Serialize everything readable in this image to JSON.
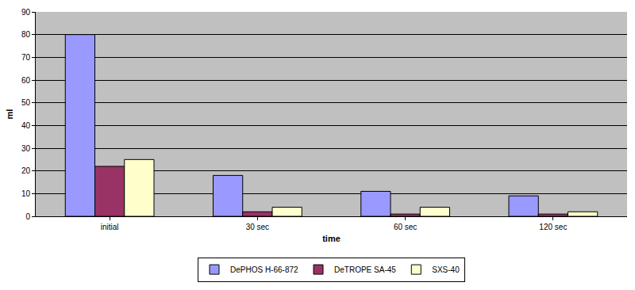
{
  "chart_data": {
    "type": "bar",
    "x_label": "time",
    "y_label": "ml",
    "categories": [
      "initial",
      "30 sec",
      "60 sec",
      "120 sec"
    ],
    "series": [
      {
        "name": "DePHOS H-66-872",
        "color": "#9999ff",
        "values": [
          80,
          18,
          11,
          9
        ]
      },
      {
        "name": "DeTROPE SA-45",
        "color": "#993366",
        "values": [
          22,
          2,
          1,
          1
        ]
      },
      {
        "name": "SXS-40",
        "color": "#ffffcc",
        "values": [
          25,
          4,
          4,
          2
        ]
      }
    ],
    "ylim": [
      0,
      90
    ],
    "yticks": [
      0,
      10,
      20,
      30,
      40,
      50,
      60,
      70,
      80,
      90
    ],
    "grid": true,
    "legend": "bottom"
  }
}
